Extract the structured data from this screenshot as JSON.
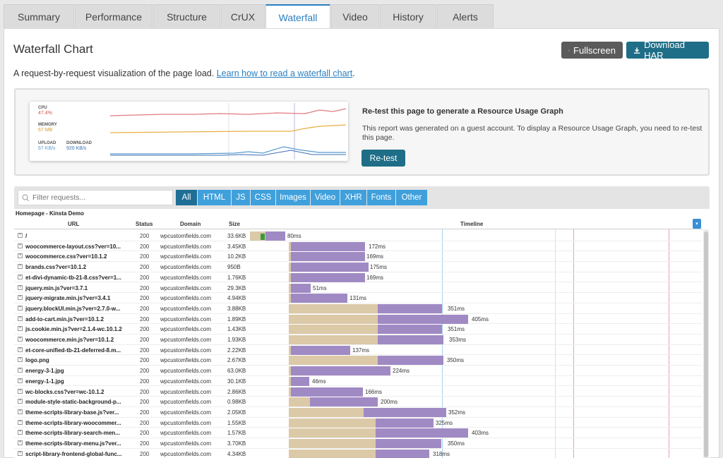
{
  "tabs": [
    "Summary",
    "Performance",
    "Structure",
    "CrUX",
    "Waterfall",
    "Video",
    "History",
    "Alerts"
  ],
  "active_tab": "Waterfall",
  "header": {
    "title": "Waterfall Chart",
    "fullscreen_label": "Fullscreen",
    "download_label": "Download HAR"
  },
  "intro": {
    "text": "A request-by-request visualization of the page load.",
    "link": "Learn how to read a waterfall chart",
    "suffix": "."
  },
  "resource_graph": {
    "cpu_label": "CPU",
    "cpu_value": "47.4%",
    "memory_label": "MEMORY",
    "memory_value": "67 MB",
    "upload_label": "UPLOAD",
    "upload_value": "67 KB/s",
    "download_label": "DOWNLOAD",
    "download_value": "920 KB/s",
    "title": "Re-test this page to generate a Resource Usage Graph",
    "text": "This report was generated on a guest account. To display a Resource Usage Graph, you need to re-test this page.",
    "button": "Re-test",
    "colors": {
      "cpu": "#e07a83",
      "memory": "#e8b040",
      "upload": "#5a9ad0",
      "download": "#3a6fb0"
    }
  },
  "filter": {
    "placeholder": "Filter requests...",
    "chips": [
      "All",
      "HTML",
      "JS",
      "CSS",
      "Images",
      "Video",
      "XHR",
      "Fonts",
      "Other"
    ],
    "active": "All"
  },
  "table": {
    "page_label": "Homepage - Kinsta Demo",
    "columns": {
      "url": "URL",
      "status": "Status",
      "domain": "Domain",
      "size": "Size",
      "timeline": "Timeline"
    },
    "rows": [
      {
        "url": "/",
        "status": "200",
        "domain": "wpcustomfields.com",
        "size": "33.6KB",
        "ms": "80ms"
      },
      {
        "url": "woocommerce-layout.css?ver=10...",
        "status": "200",
        "domain": "wpcustomfields.com",
        "size": "3.45KB",
        "ms": "172ms"
      },
      {
        "url": "woocommerce.css?ver=10.1.2",
        "status": "200",
        "domain": "wpcustomfields.com",
        "size": "10.2KB",
        "ms": "169ms"
      },
      {
        "url": "brands.css?ver=10.1.2",
        "status": "200",
        "domain": "wpcustomfields.com",
        "size": "950B",
        "ms": "175ms"
      },
      {
        "url": "et-divi-dynamic-tb-21-8.css?ver=1...",
        "status": "200",
        "domain": "wpcustomfields.com",
        "size": "1.76KB",
        "ms": "169ms"
      },
      {
        "url": "jquery.min.js?ver=3.7.1",
        "status": "200",
        "domain": "wpcustomfields.com",
        "size": "29.3KB",
        "ms": "51ms"
      },
      {
        "url": "jquery-migrate.min.js?ver=3.4.1",
        "status": "200",
        "domain": "wpcustomfields.com",
        "size": "4.94KB",
        "ms": "131ms"
      },
      {
        "url": "jquery.blockUI.min.js?ver=2.7.0-w...",
        "status": "200",
        "domain": "wpcustomfields.com",
        "size": "3.88KB",
        "ms": "351ms"
      },
      {
        "url": "add-to-cart.min.js?ver=10.1.2",
        "status": "200",
        "domain": "wpcustomfields.com",
        "size": "1.89KB",
        "ms": "405ms"
      },
      {
        "url": "js.cookie.min.js?ver=2.1.4-wc.10.1.2",
        "status": "200",
        "domain": "wpcustomfields.com",
        "size": "1.43KB",
        "ms": "351ms"
      },
      {
        "url": "woocommerce.min.js?ver=10.1.2",
        "status": "200",
        "domain": "wpcustomfields.com",
        "size": "1.93KB",
        "ms": "353ms"
      },
      {
        "url": "et-core-unified-tb-21-deferred-8.m...",
        "status": "200",
        "domain": "wpcustomfields.com",
        "size": "2.22KB",
        "ms": "137ms"
      },
      {
        "url": "logo.png",
        "status": "200",
        "domain": "wpcustomfields.com",
        "size": "2.67KB",
        "ms": "350ms"
      },
      {
        "url": "energy-3-1.jpg",
        "status": "200",
        "domain": "wpcustomfields.com",
        "size": "63.0KB",
        "ms": "224ms"
      },
      {
        "url": "energy-1-1.jpg",
        "status": "200",
        "domain": "wpcustomfields.com",
        "size": "30.1KB",
        "ms": "46ms"
      },
      {
        "url": "wc-blocks.css?ver=wc-10.1.2",
        "status": "200",
        "domain": "wpcustomfields.com",
        "size": "2.86KB",
        "ms": "166ms"
      },
      {
        "url": "module-style-static-background-p...",
        "status": "200",
        "domain": "wpcustomfields.com",
        "size": "0.98KB",
        "ms": "200ms"
      },
      {
        "url": "theme-scripts-library-base.js?ver...",
        "status": "200",
        "domain": "wpcustomfields.com",
        "size": "2.05KB",
        "ms": "352ms"
      },
      {
        "url": "theme-scripts-library-woocommer...",
        "status": "200",
        "domain": "wpcustomfields.com",
        "size": "1.55KB",
        "ms": "325ms"
      },
      {
        "url": "theme-scripts-library-search-men...",
        "status": "200",
        "domain": "wpcustomfields.com",
        "size": "1.57KB",
        "ms": "403ms"
      },
      {
        "url": "theme-scripts-library-menu.js?ver...",
        "status": "200",
        "domain": "wpcustomfields.com",
        "size": "3.70KB",
        "ms": "350ms"
      },
      {
        "url": "script-library-frontend-global-func...",
        "status": "200",
        "domain": "wpcustomfields.com",
        "size": "4.34KB",
        "ms": "318ms"
      }
    ]
  }
}
